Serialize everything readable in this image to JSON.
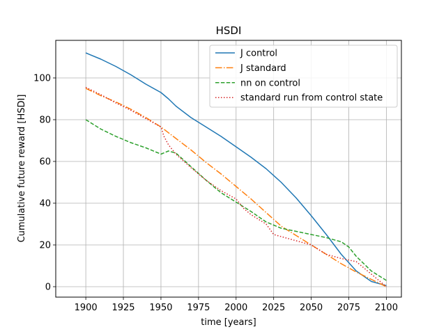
{
  "chart_data": {
    "type": "line",
    "title": "HSDI",
    "xlabel": "time [years]",
    "ylabel": "Cumulative future reward [HSDI]",
    "xlim": [
      1880,
      2110
    ],
    "ylim": [
      -5,
      118
    ],
    "xticks": [
      1900,
      1925,
      1950,
      1975,
      2000,
      2025,
      2050,
      2075,
      2100
    ],
    "yticks": [
      0,
      20,
      40,
      60,
      80,
      100
    ],
    "grid": true,
    "legend_position": "top-right",
    "series": [
      {
        "name": "J control",
        "color": "#1f77b4",
        "dash": "solid",
        "x": [
          1900,
          1910,
          1920,
          1930,
          1940,
          1950,
          1955,
          1960,
          1970,
          1980,
          1990,
          2000,
          2010,
          2020,
          2030,
          2040,
          2050,
          2060,
          2070,
          2080,
          2090,
          2100
        ],
        "y": [
          112,
          109,
          105.5,
          101.5,
          97,
          93,
          90,
          86.5,
          81,
          76.5,
          72,
          67,
          62,
          56.5,
          50,
          42.5,
          34,
          25,
          15.5,
          7.5,
          2.5,
          0.5
        ]
      },
      {
        "name": "J standard",
        "color": "#ff7f0e",
        "dash": "dashdot",
        "x": [
          1900,
          1910,
          1920,
          1930,
          1940,
          1950,
          1960,
          1970,
          1980,
          1990,
          2000,
          2010,
          2020,
          2030,
          2040,
          2050,
          2060,
          2070,
          2080,
          2090,
          2100
        ],
        "y": [
          95,
          91.5,
          88.5,
          85,
          81,
          76.5,
          71,
          65.5,
          59.5,
          54,
          48,
          42,
          35.5,
          29,
          24.5,
          20,
          15.5,
          11,
          7,
          3.5,
          0
        ]
      },
      {
        "name": "nn on control",
        "color": "#2ca02c",
        "dash": "dashed",
        "x": [
          1900,
          1910,
          1920,
          1930,
          1940,
          1950,
          1955,
          1960,
          1970,
          1980,
          1990,
          2000,
          2010,
          2020,
          2030,
          2040,
          2050,
          2060,
          2070,
          2075,
          2080,
          2090,
          2100
        ],
        "y": [
          80,
          75.5,
          72,
          69,
          66.5,
          63.5,
          65,
          64,
          57.5,
          51,
          45,
          40.5,
          36,
          31,
          28,
          26.5,
          25,
          23.5,
          21.5,
          19,
          14.5,
          7.5,
          3
        ]
      },
      {
        "name": "standard run from control state",
        "color": "#d62728",
        "dash": "dotted",
        "x": [
          1900,
          1910,
          1920,
          1930,
          1940,
          1950,
          1952,
          1955,
          1960,
          1970,
          1980,
          1990,
          2000,
          2005,
          2010,
          2020,
          2025,
          2030,
          2040,
          2050,
          2060,
          2070,
          2080,
          2090,
          2100
        ],
        "y": [
          95.5,
          92,
          88,
          84.5,
          80.5,
          76.5,
          72,
          68,
          63.5,
          57,
          51,
          46,
          42,
          37.5,
          34.5,
          30,
          25,
          24,
          22,
          20,
          15.5,
          13.5,
          12,
          6,
          0
        ]
      }
    ]
  }
}
